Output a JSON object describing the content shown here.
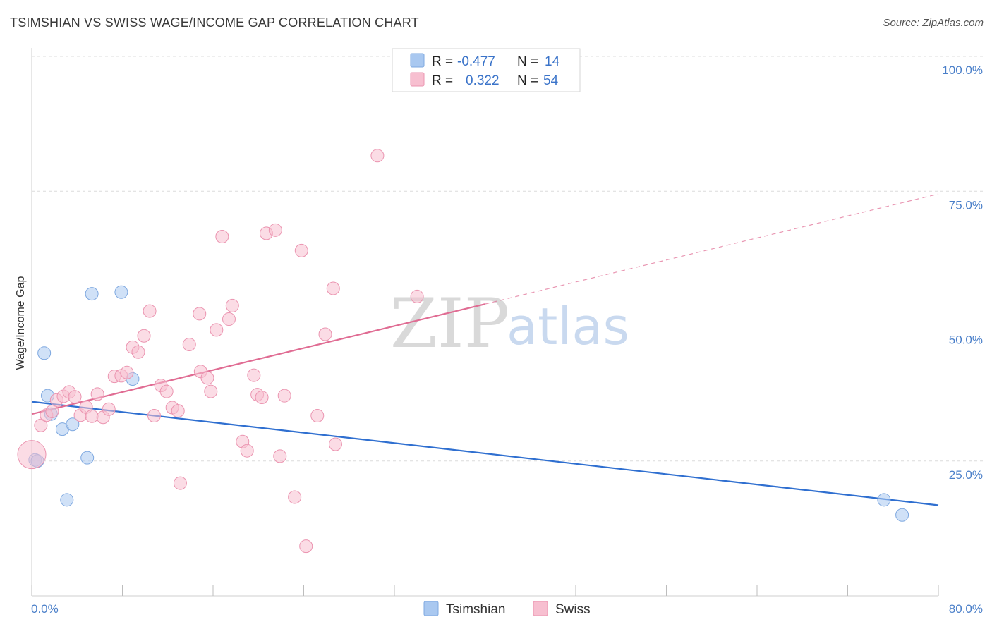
{
  "header": {
    "title": "TSIMSHIAN VS SWISS WAGE/INCOME GAP CORRELATION CHART",
    "source": "Source: ZipAtlas.com"
  },
  "watermark": {
    "zip": "ZIP",
    "atlas": "atlas"
  },
  "legend": {
    "rows": [
      {
        "r_label": "R =",
        "r_value": "-0.477",
        "n_label": "N =",
        "n_value": "14",
        "color": "#a9c8f0"
      },
      {
        "r_label": "R =",
        "r_value": "0.322",
        "n_label": "N =",
        "n_value": "54",
        "color": "#f7bfd0"
      }
    ]
  },
  "bottom_legend": {
    "items": [
      "Tsimshian",
      "Swiss"
    ]
  },
  "chart_data": {
    "type": "scatter",
    "title": "TSIMSHIAN VS SWISS WAGE/INCOME GAP CORRELATION CHART",
    "xlabel": "",
    "ylabel": "Wage/Income Gap",
    "xlim": [
      0,
      80
    ],
    "ylim": [
      0,
      100
    ],
    "x_tick_labels": [
      "0.0%",
      "80.0%"
    ],
    "y_ticks": [
      25,
      50,
      75,
      100
    ],
    "y_tick_labels": [
      "25.0%",
      "50.0%",
      "75.0%",
      "100.0%"
    ],
    "grid": true,
    "legend_position": "top-center",
    "series": [
      {
        "name": "Tsimshian",
        "color": "#a9c8f0",
        "line_color": "#2f6fd0",
        "trend": {
          "x": [
            0,
            80
          ],
          "y": [
            36.0,
            16.8
          ],
          "dashed_to": null
        },
        "points": [
          [
            0.3,
            25.2
          ],
          [
            1.1,
            45.0
          ],
          [
            1.4,
            37.1
          ],
          [
            1.7,
            33.7
          ],
          [
            2.7,
            30.9
          ],
          [
            3.1,
            17.8
          ],
          [
            3.6,
            31.8
          ],
          [
            4.9,
            25.6
          ],
          [
            5.3,
            56.0
          ],
          [
            7.9,
            56.3
          ],
          [
            8.9,
            40.2
          ],
          [
            75.2,
            17.8
          ],
          [
            76.8,
            15.0
          ],
          [
            0.5,
            25.0
          ]
        ]
      },
      {
        "name": "Swiss",
        "color": "#f7bfd0",
        "line_color": "#e06c93",
        "trend": {
          "x": [
            0,
            40
          ],
          "y": [
            33.7,
            54.1
          ],
          "dashed_to": [
            80,
            74.5
          ]
        },
        "points": [
          [
            0.0,
            26.2
          ],
          [
            0.8,
            31.6
          ],
          [
            1.3,
            33.5
          ],
          [
            1.8,
            34.2
          ],
          [
            2.2,
            36.3
          ],
          [
            2.8,
            37.0
          ],
          [
            3.3,
            37.8
          ],
          [
            3.8,
            36.9
          ],
          [
            4.3,
            33.5
          ],
          [
            4.8,
            35.0
          ],
          [
            5.3,
            33.3
          ],
          [
            5.8,
            37.4
          ],
          [
            6.3,
            33.1
          ],
          [
            6.8,
            34.6
          ],
          [
            7.3,
            40.7
          ],
          [
            7.9,
            40.8
          ],
          [
            8.4,
            41.4
          ],
          [
            8.9,
            46.1
          ],
          [
            9.4,
            45.2
          ],
          [
            9.9,
            48.2
          ],
          [
            10.4,
            52.8
          ],
          [
            10.8,
            33.4
          ],
          [
            11.4,
            39.0
          ],
          [
            11.9,
            37.9
          ],
          [
            12.4,
            34.9
          ],
          [
            12.9,
            34.3
          ],
          [
            13.1,
            20.9
          ],
          [
            13.9,
            46.6
          ],
          [
            14.9,
            41.6
          ],
          [
            14.8,
            52.3
          ],
          [
            15.5,
            40.4
          ],
          [
            15.8,
            37.9
          ],
          [
            16.3,
            49.3
          ],
          [
            16.8,
            66.6
          ],
          [
            17.4,
            51.3
          ],
          [
            17.7,
            53.8
          ],
          [
            18.6,
            28.6
          ],
          [
            19.0,
            26.9
          ],
          [
            19.6,
            40.9
          ],
          [
            19.9,
            37.3
          ],
          [
            20.3,
            36.8
          ],
          [
            20.7,
            67.2
          ],
          [
            21.5,
            67.8
          ],
          [
            21.9,
            25.9
          ],
          [
            22.3,
            37.1
          ],
          [
            23.2,
            18.3
          ],
          [
            23.8,
            64.0
          ],
          [
            24.2,
            9.2
          ],
          [
            25.2,
            33.4
          ],
          [
            25.9,
            48.5
          ],
          [
            26.6,
            57.0
          ],
          [
            26.8,
            28.1
          ],
          [
            30.5,
            81.6
          ],
          [
            34.0,
            55.5
          ]
        ]
      }
    ]
  }
}
